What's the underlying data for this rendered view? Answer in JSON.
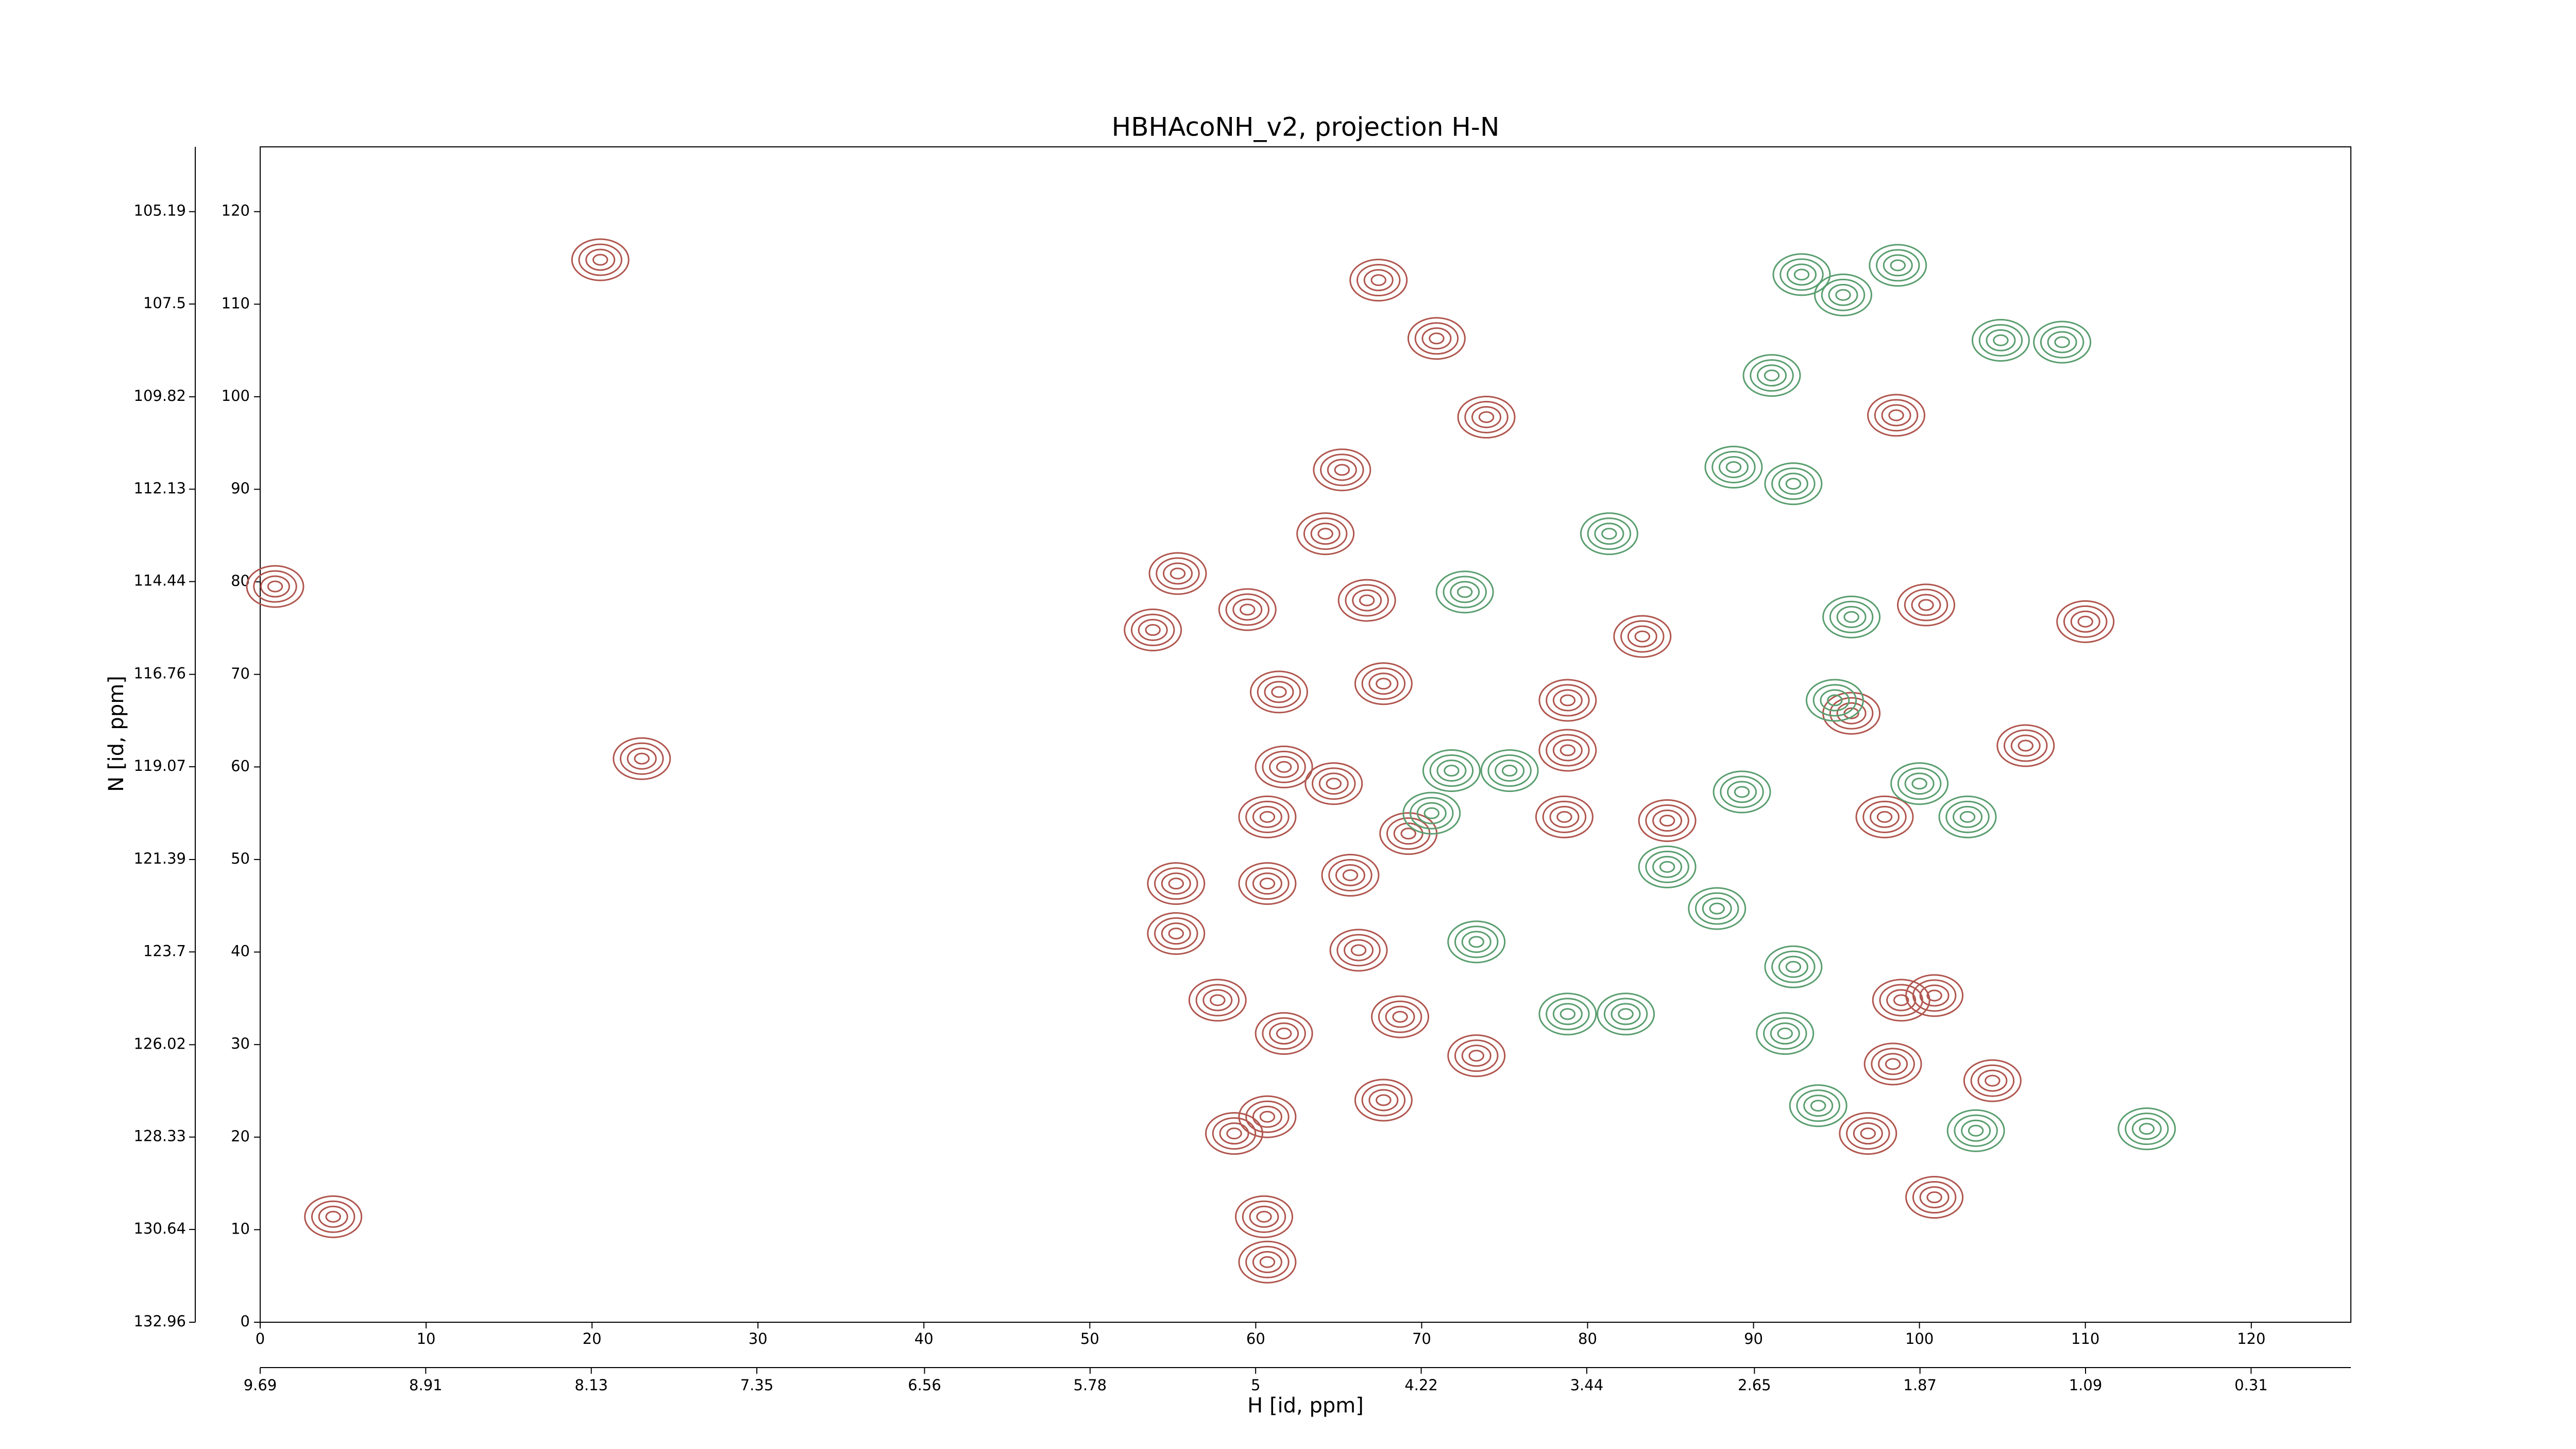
{
  "chart_data": {
    "type": "contour",
    "title": "HBHAcoNH_v2, projection H-N",
    "xlabel": "H [id, ppm]",
    "ylabel": "N [id, ppm]",
    "xlim": [
      0,
      126
    ],
    "xticks": [
      0,
      10,
      20,
      30,
      40,
      50,
      60,
      70,
      80,
      90,
      100,
      110,
      120
    ],
    "ylim": [
      0,
      127
    ],
    "yticks": [
      0,
      10,
      20,
      30,
      40,
      50,
      60,
      70,
      80,
      90,
      100,
      110,
      120
    ],
    "x2lim": [
      9.69,
      -0.16
    ],
    "x2ticks": [
      9.69,
      8.91,
      8.13,
      7.35,
      6.56,
      5.78,
      5.0,
      4.22,
      3.44,
      2.65,
      1.87,
      1.09,
      0.31
    ],
    "y2lim": [
      132.96,
      103.57
    ],
    "y2ticks": [
      132.96,
      130.64,
      128.33,
      126.02,
      123.7,
      121.39,
      119.07,
      116.76,
      114.44,
      112.13,
      109.82,
      107.5,
      105.19
    ],
    "grid": false,
    "series": [
      {
        "color": "#b0564e",
        "x": [
          67.4,
          70.9,
          73.9,
          98.6,
          65.2,
          64.2,
          55.3,
          53.8,
          59.5,
          66.7,
          61.4,
          67.7,
          78.8,
          78.8,
          83.3,
          84.8,
          78.6,
          61.7,
          60.7,
          64.7,
          69.2,
          60.7,
          65.7,
          55.2,
          55.2,
          66.2,
          57.7,
          61.7,
          68.7,
          73.3,
          60.7,
          67.7,
          58.7,
          60.5,
          60.7,
          98.9,
          98.4,
          100.9,
          104.4,
          96.9,
          100.9,
          110.0,
          106.4,
          100.4,
          97.9,
          95.9,
          0.9,
          20.5,
          23.0,
          4.4
        ],
        "values": [
          112.6,
          106.3,
          97.8,
          98.0,
          92.1,
          85.2,
          80.9,
          74.8,
          77.0,
          78.0,
          68.1,
          69.0,
          67.2,
          61.8,
          74.1,
          54.2,
          54.6,
          60.0,
          54.6,
          58.2,
          52.8,
          47.4,
          48.3,
          47.4,
          42.0,
          40.2,
          34.8,
          31.2,
          33.0,
          28.8,
          22.2,
          24.0,
          20.4,
          11.4,
          6.5,
          34.8,
          27.9,
          35.3,
          26.1,
          20.4,
          13.5,
          75.7,
          62.3,
          77.5,
          54.6,
          65.8,
          79.5,
          114.8,
          60.9,
          11.4
        ]
      },
      {
        "color": "#5a9e6f",
        "x": [
          72.6,
          71.8,
          75.3,
          70.6,
          73.3,
          82.3,
          78.8,
          92.4,
          88.8,
          92.9,
          95.4,
          98.7,
          91.1,
          104.9,
          108.6,
          95.9,
          94.9,
          100.0,
          102.9,
          89.3,
          84.8,
          87.8,
          92.4,
          91.9,
          93.9,
          103.4,
          113.7,
          81.3
        ],
        "values": [
          78.9,
          59.6,
          59.6,
          55.0,
          41.1,
          33.3,
          33.3,
          90.6,
          92.4,
          113.2,
          111.0,
          114.2,
          102.3,
          106.1,
          105.9,
          76.2,
          67.2,
          58.2,
          54.6,
          57.3,
          49.2,
          44.7,
          38.4,
          31.2,
          23.4,
          20.7,
          20.9,
          85.2
        ]
      }
    ]
  }
}
